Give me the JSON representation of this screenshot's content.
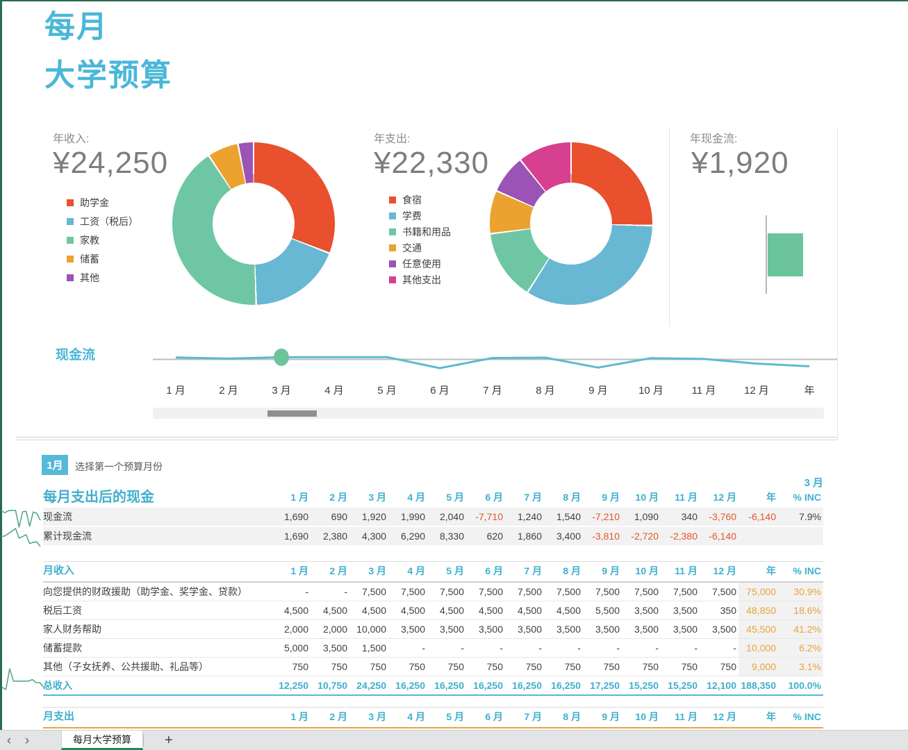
{
  "header": {
    "title_line1": "每月",
    "title_line2": "大学预算"
  },
  "cards": {
    "income": {
      "label": "年收入:",
      "value": "¥24,250"
    },
    "expense": {
      "label": "年支出:",
      "value": "¥22,330"
    },
    "cashflow": {
      "label": "年现金流:",
      "value": "¥1,920"
    }
  },
  "chart_data": [
    {
      "id": "income-donut",
      "type": "pie",
      "title": "年收入",
      "center_total": "¥24,250",
      "labels": [
        "助学金",
        "工资（税后）",
        "家教",
        "储蓄",
        "其他"
      ],
      "values": [
        7500,
        4500,
        10000,
        1500,
        750
      ],
      "colors": [
        "#e8502e",
        "#68b7d3",
        "#6ec6a4",
        "#eba22f",
        "#9b53b5"
      ]
    },
    {
      "id": "expense-donut",
      "type": "pie",
      "title": "年支出",
      "center_total": "¥22,330",
      "labels": [
        "食宿",
        "学费",
        "书籍和用品",
        "交通",
        "任意使用",
        "其他支出"
      ],
      "values": [
        5670,
        7500,
        3130,
        1920,
        1720,
        2390
      ],
      "colors": [
        "#e8502e",
        "#68b7d3",
        "#6ec6a4",
        "#eba22f",
        "#9b53b5",
        "#d6408e"
      ]
    },
    {
      "id": "cashflow-bar",
      "type": "bar",
      "title": "年现金流",
      "categories": [
        "年"
      ],
      "values": [
        1920
      ],
      "color": "#6cc49b"
    },
    {
      "id": "cashflow-line",
      "type": "line",
      "title": "现金流",
      "categories": [
        "1 月",
        "2 月",
        "3 月",
        "4 月",
        "5 月",
        "6 月",
        "7 月",
        "8 月",
        "9 月",
        "10 月",
        "11 月",
        "12 月",
        "年"
      ],
      "values": [
        1690,
        690,
        1920,
        1990,
        2040,
        -7710,
        1240,
        1540,
        -7210,
        1090,
        340,
        -3760,
        -6140
      ],
      "highlight_category": "3 月",
      "line_color": "#5fb9ce",
      "axis_color": "#bdbdbd",
      "dot_color": "#6cc49b"
    }
  ],
  "selector": {
    "badge": "1月",
    "hint": "选择第一个预算月份"
  },
  "selected_month_label": "3 月",
  "tables": {
    "cash": {
      "title": "每月支出后的现金",
      "columns": [
        "1 月",
        "2 月",
        "3 月",
        "4 月",
        "5 月",
        "6 月",
        "7 月",
        "8 月",
        "9 月",
        "10 月",
        "11 月",
        "12 月",
        "年",
        "% INC"
      ],
      "rows": [
        {
          "label": "现金流",
          "values": [
            "1,690",
            "690",
            "1,920",
            "1,990",
            "2,040",
            "-7,710",
            "1,240",
            "1,540",
            "-7,210",
            "1,090",
            "340",
            "-3,760",
            "-6,140",
            "7.9%"
          ]
        },
        {
          "label": "累计现金流",
          "values": [
            "1,690",
            "2,380",
            "4,300",
            "6,290",
            "8,330",
            "620",
            "1,860",
            "3,400",
            "-3,810",
            "-2,720",
            "-2,380",
            "-6,140",
            "",
            ""
          ]
        }
      ]
    },
    "income": {
      "title": "月收入",
      "columns": [
        "1 月",
        "2 月",
        "3 月",
        "4 月",
        "5 月",
        "6 月",
        "7 月",
        "8 月",
        "9 月",
        "10 月",
        "11 月",
        "12 月",
        "年",
        "% INC"
      ],
      "rows": [
        {
          "label": "向您提供的财政援助（助学金、奖学金、贷款）",
          "values": [
            "-",
            "-",
            "7,500",
            "7,500",
            "7,500",
            "7,500",
            "7,500",
            "7,500",
            "7,500",
            "7,500",
            "7,500",
            "7,500",
            "75,000",
            "30.9%"
          ]
        },
        {
          "label": "税后工资",
          "values": [
            "4,500",
            "4,500",
            "4,500",
            "4,500",
            "4,500",
            "4,500",
            "4,500",
            "4,500",
            "5,500",
            "3,500",
            "3,500",
            "350",
            "48,850",
            "18.6%"
          ]
        },
        {
          "label": "家人财务帮助",
          "values": [
            "2,000",
            "2,000",
            "10,000",
            "3,500",
            "3,500",
            "3,500",
            "3,500",
            "3,500",
            "3,500",
            "3,500",
            "3,500",
            "3,500",
            "45,500",
            "41.2%"
          ]
        },
        {
          "label": "储蓄提款",
          "values": [
            "5,000",
            "3,500",
            "1,500",
            "-",
            "-",
            "-",
            "-",
            "-",
            "-",
            "-",
            "-",
            "-",
            "10,000",
            "6.2%"
          ]
        },
        {
          "label": "其他（子女抚养、公共援助、礼品等）",
          "values": [
            "750",
            "750",
            "750",
            "750",
            "750",
            "750",
            "750",
            "750",
            "750",
            "750",
            "750",
            "750",
            "9,000",
            "3.1%"
          ]
        },
        {
          "label": "总收入",
          "total": true,
          "values": [
            "12,250",
            "10,750",
            "24,250",
            "16,250",
            "16,250",
            "16,250",
            "16,250",
            "16,250",
            "17,250",
            "15,250",
            "15,250",
            "12,100",
            "188,350",
            "100.0%"
          ]
        }
      ]
    },
    "expense": {
      "title": "月支出",
      "columns": [
        "1 月",
        "2 月",
        "3 月",
        "4 月",
        "5 月",
        "6 月",
        "7 月",
        "8 月",
        "9 月",
        "10 月",
        "11 月",
        "12 月",
        "年",
        "% INC"
      ],
      "rows": []
    }
  },
  "tab_bar": {
    "prev": "‹",
    "next": "›",
    "tab": "每月大学预算",
    "add": "+"
  }
}
